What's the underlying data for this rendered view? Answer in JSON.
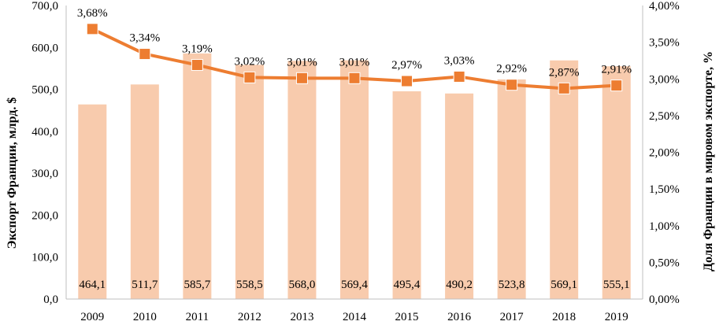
{
  "chart_data": {
    "type": "bar+line",
    "categories": [
      "2009",
      "2010",
      "2011",
      "2012",
      "2013",
      "2014",
      "2015",
      "2016",
      "2017",
      "2018",
      "2019"
    ],
    "series": [
      {
        "axis": "left",
        "chart": "bar",
        "values": [
          464.1,
          511.7,
          585.7,
          558.5,
          568.0,
          569.4,
          495.4,
          490.2,
          523.8,
          569.1,
          555.1
        ],
        "labels": [
          "464,1",
          "511,7",
          "585,7",
          "558,5",
          "568,0",
          "569,4",
          "495,4",
          "490,2",
          "523,8",
          "569,1",
          "555,1"
        ],
        "color": "#F8CBAD"
      },
      {
        "axis": "right",
        "chart": "line",
        "values": [
          3.68,
          3.34,
          3.19,
          3.02,
          3.01,
          3.01,
          2.97,
          3.03,
          2.92,
          2.87,
          2.91
        ],
        "labels": [
          "3,68%",
          "3,34%",
          "3,19%",
          "3,02%",
          "3,01%",
          "3,01%",
          "2,97%",
          "3,03%",
          "2,92%",
          "2,87%",
          "2,91%"
        ],
        "color": "#ED7D31"
      }
    ],
    "ylabel_left": "Экспорт Франции, млрд. $",
    "ylabel_right": "Доля Франции в мировом экспорте, %",
    "ylim_left": [
      0,
      700
    ],
    "ylim_right": [
      0,
      4
    ],
    "yticks_left": [
      "0,0",
      "100,0",
      "200,0",
      "300,0",
      "400,0",
      "500,0",
      "600,0",
      "700,0"
    ],
    "yticks_right": [
      "0,00%",
      "0,50%",
      "1,00%",
      "1,50%",
      "2,00%",
      "2,50%",
      "3,00%",
      "3,50%",
      "4,00%"
    ],
    "grid": false,
    "legend": "none"
  }
}
